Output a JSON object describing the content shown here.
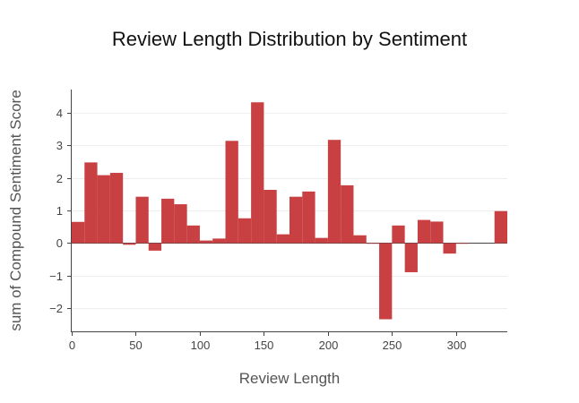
{
  "chart_data": {
    "type": "bar",
    "title": "Review Length Distribution by Sentiment",
    "xlabel": "Review Length",
    "ylabel": "sum of Compound Sentiment Score",
    "bin_width": 10,
    "x": [
      0,
      10,
      20,
      30,
      40,
      50,
      60,
      70,
      80,
      90,
      100,
      110,
      120,
      130,
      140,
      150,
      160,
      170,
      180,
      190,
      200,
      210,
      220,
      230,
      240,
      250,
      260,
      270,
      280,
      290,
      300,
      310,
      320,
      330
    ],
    "values": [
      0.65,
      2.47,
      2.08,
      2.15,
      -0.05,
      1.42,
      -0.23,
      1.36,
      1.19,
      0.54,
      0.08,
      0.14,
      3.13,
      0.76,
      4.31,
      1.63,
      0.27,
      1.42,
      1.58,
      0.16,
      3.16,
      1.77,
      0.24,
      -0.02,
      -2.33,
      0.54,
      -0.89,
      0.71,
      0.66,
      -0.32,
      -0.02,
      0.0,
      0.0,
      0.98
    ],
    "xlim": [
      0,
      340
    ],
    "ylim": [
      -2.7,
      4.7
    ],
    "x_ticks": [
      0,
      50,
      100,
      150,
      200,
      250,
      300
    ],
    "y_ticks": [
      -2,
      -1,
      0,
      1,
      2,
      3,
      4
    ],
    "y_tick_labels": [
      "−2",
      "−1",
      "0",
      "1",
      "2",
      "3",
      "4"
    ],
    "grid": true,
    "bar_color": "#c94042"
  }
}
